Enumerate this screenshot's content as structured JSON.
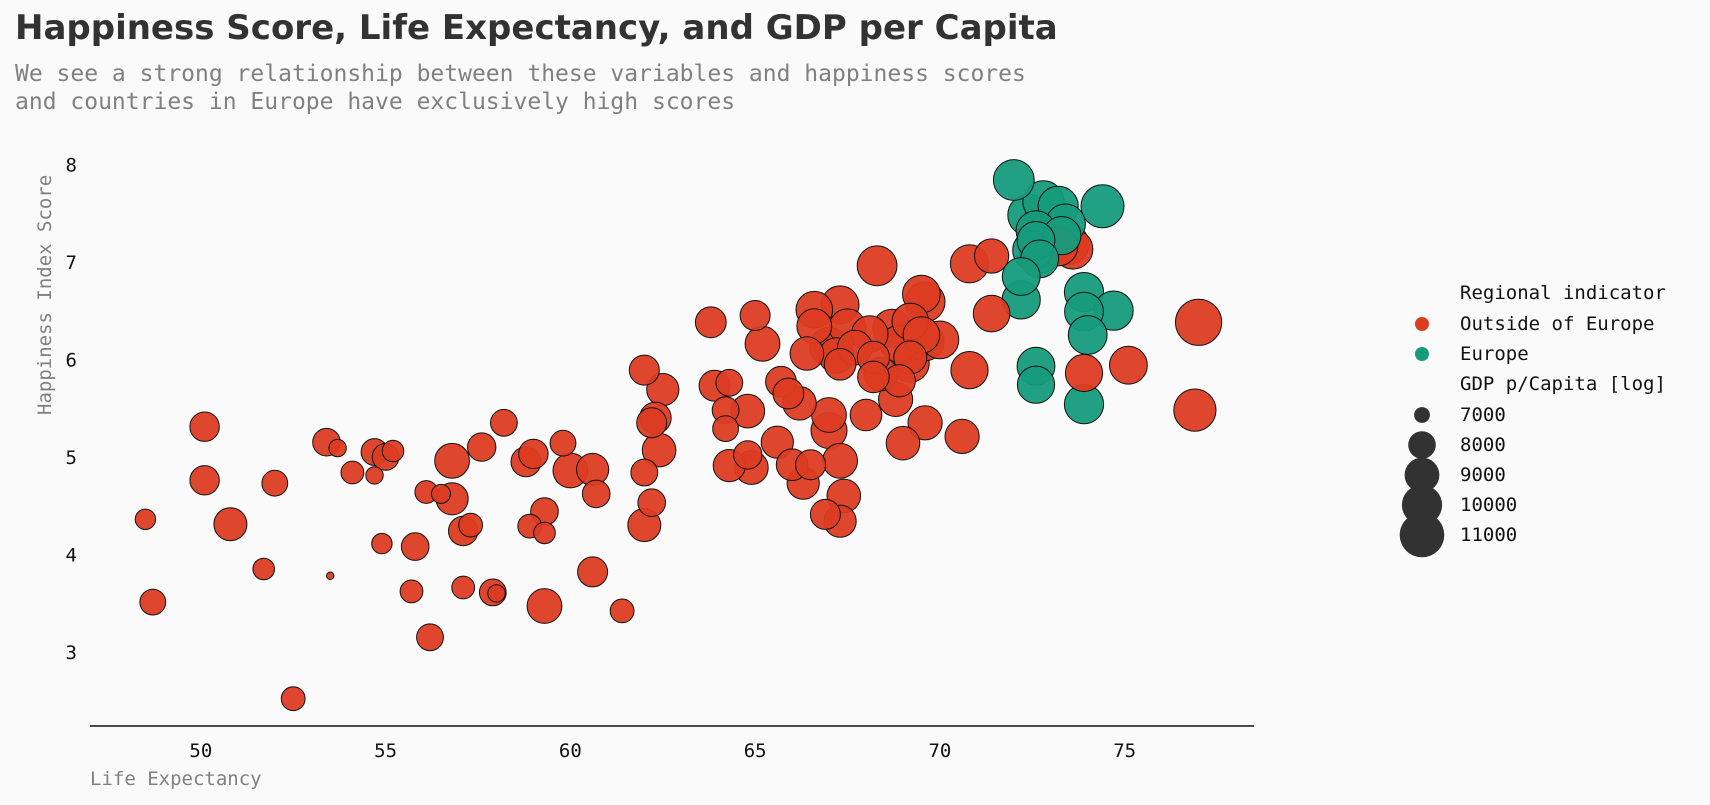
{
  "chart_data": {
    "type": "scatter",
    "title": "Happiness Score, Life Expectancy, and GDP per Capita",
    "subtitle": [
      "We see a strong relationship between these variables and happiness scores",
      "and countries in Europe have exclusively high scores"
    ],
    "xlabel": "Life Expectancy",
    "ylabel": "Happiness Index Score",
    "xlim": [
      47,
      78.5
    ],
    "ylim": [
      2.25,
      8.25
    ],
    "xticks": [
      50,
      55,
      60,
      65,
      70,
      75
    ],
    "yticks": [
      3,
      4,
      5,
      6,
      7,
      8
    ],
    "grid": false,
    "legend_position": "right",
    "legend": {
      "hue_title": "Regional indicator",
      "size_title": "GDP p/Capita [log]",
      "size_entries": [
        7000,
        8000,
        9000,
        10000,
        11000
      ]
    },
    "size_scale": {
      "gdp_min": 6600,
      "gdp_max": 11650
    },
    "series": [
      {
        "name": "Outside of Europe",
        "color": "#dc3c22",
        "points": [
          [
            48.5,
            4.36,
            7300
          ],
          [
            48.7,
            3.51,
            7800
          ],
          [
            50.1,
            5.31,
            8200
          ],
          [
            50.1,
            4.76,
            8200
          ],
          [
            50.8,
            4.31,
            8700
          ],
          [
            51.7,
            3.85,
            7400
          ],
          [
            52.0,
            4.73,
            7800
          ],
          [
            52.5,
            2.52,
            7600
          ],
          [
            53.4,
            5.15,
            8000
          ],
          [
            53.7,
            5.09,
            7100
          ],
          [
            53.5,
            3.78,
            6650
          ],
          [
            54.1,
            4.84,
            7500
          ],
          [
            54.7,
            5.05,
            7900
          ],
          [
            54.7,
            4.81,
            7100
          ],
          [
            55.0,
            5.0,
            7900
          ],
          [
            55.2,
            5.06,
            7400
          ],
          [
            54.9,
            4.11,
            7300
          ],
          [
            55.8,
            4.08,
            8000
          ],
          [
            55.7,
            3.62,
            7500
          ],
          [
            56.1,
            4.64,
            7500
          ],
          [
            56.2,
            3.15,
            7900
          ],
          [
            56.5,
            4.62,
            7200
          ],
          [
            56.8,
            4.96,
            9000
          ],
          [
            56.8,
            4.57,
            8600
          ],
          [
            57.1,
            4.24,
            8200
          ],
          [
            57.3,
            4.3,
            7600
          ],
          [
            57.1,
            3.66,
            7500
          ],
          [
            57.6,
            5.1,
            8100
          ],
          [
            57.9,
            3.61,
            7900
          ],
          [
            58.0,
            3.6,
            7100
          ],
          [
            58.2,
            5.35,
            7900
          ],
          [
            58.8,
            4.95,
            8300
          ],
          [
            59.0,
            5.03,
            8200
          ],
          [
            58.9,
            4.29,
            7600
          ],
          [
            59.3,
            4.44,
            8000
          ],
          [
            59.3,
            4.22,
            7400
          ],
          [
            59.3,
            3.47,
            9000
          ],
          [
            59.8,
            5.14,
            7800
          ],
          [
            60.0,
            4.86,
            9000
          ],
          [
            60.6,
            4.87,
            8600
          ],
          [
            60.7,
            4.62,
            8000
          ],
          [
            60.6,
            3.82,
            8300
          ],
          [
            61.4,
            3.42,
            7600
          ],
          [
            62.0,
            5.89,
            8300
          ],
          [
            62.0,
            4.84,
            7900
          ],
          [
            62.0,
            4.3,
            8700
          ],
          [
            62.3,
            5.4,
            8500
          ],
          [
            62.2,
            5.35,
            8300
          ],
          [
            62.4,
            5.07,
            8800
          ],
          [
            62.2,
            4.53,
            8000
          ],
          [
            62.5,
            5.69,
            8600
          ],
          [
            63.8,
            6.38,
            8400
          ],
          [
            63.9,
            5.73,
            8400
          ],
          [
            64.3,
            5.76,
            7900
          ],
          [
            64.2,
            5.48,
            7900
          ],
          [
            64.2,
            5.29,
            7800
          ],
          [
            64.3,
            4.91,
            8600
          ],
          [
            64.8,
            5.47,
            8800
          ],
          [
            64.8,
            5.02,
            8100
          ],
          [
            64.9,
            4.89,
            8800
          ],
          [
            65.0,
            6.45,
            8300
          ],
          [
            65.2,
            6.16,
            9000
          ],
          [
            65.7,
            5.77,
            8400
          ],
          [
            65.6,
            5.15,
            8600
          ],
          [
            65.9,
            5.65,
            8400
          ],
          [
            66.0,
            4.92,
            8500
          ],
          [
            66.2,
            5.55,
            8800
          ],
          [
            66.3,
            4.73,
            8600
          ],
          [
            66.6,
            6.51,
            9300
          ],
          [
            66.6,
            6.34,
            9000
          ],
          [
            66.4,
            6.06,
            8800
          ],
          [
            66.5,
            4.92,
            8300
          ],
          [
            67.0,
            6.13,
            9700
          ],
          [
            67.0,
            5.43,
            9000
          ],
          [
            67.0,
            5.27,
            9200
          ],
          [
            66.9,
            4.41,
            8300
          ],
          [
            67.3,
            6.56,
            9500
          ],
          [
            67.2,
            6.04,
            9100
          ],
          [
            67.3,
            4.96,
            9000
          ],
          [
            67.4,
            4.6,
            8800
          ],
          [
            67.3,
            4.34,
            8600
          ],
          [
            67.5,
            6.33,
            9300
          ],
          [
            67.3,
            5.95,
            8500
          ],
          [
            67.7,
            6.12,
            9000
          ],
          [
            68.1,
            6.26,
            9300
          ],
          [
            68.2,
            6.02,
            8600
          ],
          [
            68.0,
            5.43,
            8500
          ],
          [
            68.3,
            6.96,
            9900
          ],
          [
            68.4,
            5.85,
            8800
          ],
          [
            68.2,
            5.82,
            8500
          ],
          [
            68.7,
            6.32,
            9500
          ],
          [
            68.9,
            6.16,
            9400
          ],
          [
            68.9,
            5.78,
            8600
          ],
          [
            68.8,
            5.59,
            8900
          ],
          [
            69.2,
            6.39,
            9300
          ],
          [
            69.2,
            6.02,
            8700
          ],
          [
            69.2,
            5.96,
            9500
          ],
          [
            69.0,
            5.14,
            8800
          ],
          [
            69.5,
            6.67,
            9500
          ],
          [
            69.6,
            6.59,
            9900
          ],
          [
            69.5,
            6.25,
            9300
          ],
          [
            69.6,
            6.18,
            9500
          ],
          [
            69.6,
            5.35,
            8900
          ],
          [
            70.0,
            6.2,
            9500
          ],
          [
            70.6,
            5.21,
            8900
          ],
          [
            70.8,
            6.98,
            9600
          ],
          [
            70.8,
            5.89,
            9400
          ],
          [
            71.4,
            7.06,
            8900
          ],
          [
            71.4,
            6.47,
            9300
          ],
          [
            73.2,
            7.16,
            9800
          ],
          [
            73.5,
            7.18,
            9900
          ],
          [
            73.6,
            7.13,
            9900
          ],
          [
            73.9,
            5.86,
            9400
          ],
          [
            75.1,
            5.94,
            9500
          ],
          [
            76.9,
            5.48,
            10400
          ],
          [
            77.0,
            6.38,
            11400
          ]
        ]
      },
      {
        "name": "Europe",
        "color": "#169b7c",
        "points": [
          [
            72.0,
            7.84,
            10100
          ],
          [
            72.8,
            7.62,
            10200
          ],
          [
            73.2,
            7.57,
            10000
          ],
          [
            72.4,
            7.48,
            10300
          ],
          [
            73.4,
            7.39,
            9900
          ],
          [
            72.6,
            7.32,
            9900
          ],
          [
            73.3,
            7.27,
            9600
          ],
          [
            72.6,
            7.22,
            9500
          ],
          [
            72.5,
            7.12,
            9800
          ],
          [
            72.7,
            7.09,
            10000
          ],
          [
            72.7,
            7.03,
            9500
          ],
          [
            72.2,
            6.85,
            9500
          ],
          [
            73.9,
            6.69,
            9800
          ],
          [
            72.2,
            6.61,
            9600
          ],
          [
            73.9,
            6.49,
            9700
          ],
          [
            74.7,
            6.5,
            9800
          ],
          [
            74.4,
            7.57,
            10600
          ],
          [
            74.0,
            6.25,
            9700
          ],
          [
            72.6,
            5.93,
            9500
          ],
          [
            72.6,
            5.74,
            9400
          ],
          [
            73.9,
            5.54,
            9800
          ]
        ]
      }
    ]
  }
}
